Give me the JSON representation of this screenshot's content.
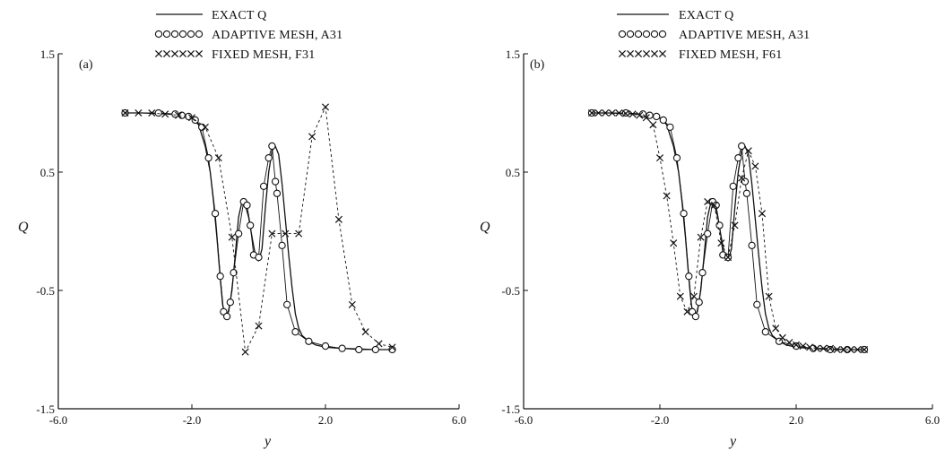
{
  "chart_data": [
    {
      "type": "line",
      "panel_label": "(a)",
      "xlabel": "y",
      "ylabel": "Q",
      "xlim": [
        -6.0,
        6.0
      ],
      "ylim": [
        -1.5,
        1.5
      ],
      "xticks": [
        "-6.0",
        "-2.0",
        "2.0",
        "6.0"
      ],
      "yticks": [
        "-1.5",
        "-0.5",
        "0.5",
        "1.5"
      ],
      "legend": [
        "EXACT Q",
        "ADAPTIVE MESH, A31",
        "FIXED MESH, F31"
      ],
      "series": [
        {
          "name": "EXACT Q",
          "style": "solid",
          "x": [
            -4.0,
            -3.5,
            -3.0,
            -2.5,
            -2.2,
            -2.0,
            -1.8,
            -1.6,
            -1.45,
            -1.35,
            -1.25,
            -1.15,
            -1.08,
            -1.0,
            -0.9,
            -0.8,
            -0.7,
            -0.6,
            -0.5,
            -0.4,
            -0.3,
            -0.2,
            -0.1,
            0.0,
            0.1,
            0.2,
            0.3,
            0.4,
            0.5,
            0.6,
            0.7,
            0.8,
            0.9,
            1.0,
            1.1,
            1.2,
            1.3,
            1.5,
            1.7,
            2.0,
            2.5,
            3.0,
            3.5,
            4.0
          ],
          "y": [
            1.0,
            1.0,
            0.995,
            0.99,
            0.98,
            0.96,
            0.9,
            0.72,
            0.5,
            0.25,
            -0.05,
            -0.4,
            -0.62,
            -0.72,
            -0.68,
            -0.5,
            -0.2,
            0.12,
            0.25,
            0.22,
            0.12,
            -0.05,
            -0.2,
            -0.25,
            -0.15,
            0.2,
            0.5,
            0.68,
            0.72,
            0.65,
            0.4,
            0.1,
            -0.2,
            -0.48,
            -0.7,
            -0.82,
            -0.88,
            -0.93,
            -0.96,
            -0.98,
            -0.99,
            -0.995,
            -1.0,
            -1.0
          ]
        },
        {
          "name": "ADAPTIVE MESH, A31",
          "style": "circles",
          "x": [
            -4.0,
            -3.0,
            -2.5,
            -2.3,
            -2.1,
            -1.9,
            -1.7,
            -1.5,
            -1.3,
            -1.15,
            -1.05,
            -0.95,
            -0.85,
            -0.75,
            -0.6,
            -0.45,
            -0.35,
            -0.25,
            -0.15,
            0.0,
            0.15,
            0.3,
            0.4,
            0.5,
            0.55,
            0.7,
            0.85,
            1.1,
            1.5,
            2.0,
            2.5,
            3.0,
            3.5,
            4.0
          ],
          "y": [
            1.0,
            1.0,
            0.99,
            0.98,
            0.97,
            0.94,
            0.88,
            0.62,
            0.15,
            -0.38,
            -0.68,
            -0.72,
            -0.6,
            -0.35,
            -0.02,
            0.25,
            0.22,
            0.05,
            -0.2,
            -0.22,
            0.38,
            0.62,
            0.72,
            0.42,
            0.32,
            -0.12,
            -0.62,
            -0.85,
            -0.93,
            -0.97,
            -0.99,
            -1.0,
            -1.0,
            -1.0
          ]
        },
        {
          "name": "FIXED MESH, F31",
          "style": "crosses",
          "x": [
            -4.0,
            -3.6,
            -3.2,
            -2.8,
            -2.4,
            -2.0,
            -1.6,
            -1.2,
            -0.8,
            -0.4,
            0.0,
            0.4,
            0.8,
            1.2,
            1.6,
            2.0,
            2.4,
            2.8,
            3.2,
            3.6,
            4.0
          ],
          "y": [
            1.0,
            1.0,
            1.0,
            0.99,
            0.98,
            0.96,
            0.88,
            0.62,
            -0.05,
            -1.02,
            -0.8,
            -0.02,
            -0.02,
            -0.02,
            0.8,
            1.05,
            0.1,
            -0.62,
            -0.85,
            -0.95,
            -0.98
          ]
        }
      ]
    },
    {
      "type": "line",
      "panel_label": "(b)",
      "xlabel": "y",
      "ylabel": "Q",
      "xlim": [
        -6.0,
        6.0
      ],
      "ylim": [
        -1.5,
        1.5
      ],
      "xticks": [
        "-6.0",
        "-2.0",
        "2.0",
        "6.0"
      ],
      "yticks": [
        "-1.5",
        "-0.5",
        "0.5",
        "1.5"
      ],
      "legend": [
        "EXACT Q",
        "ADAPTIVE MESH, A31",
        "FIXED MESH, F61"
      ],
      "series": [
        {
          "name": "EXACT Q",
          "style": "solid",
          "x": [
            -4.0,
            -3.5,
            -3.0,
            -2.5,
            -2.2,
            -2.0,
            -1.8,
            -1.6,
            -1.45,
            -1.35,
            -1.25,
            -1.15,
            -1.08,
            -1.0,
            -0.9,
            -0.8,
            -0.7,
            -0.6,
            -0.5,
            -0.4,
            -0.3,
            -0.2,
            -0.1,
            0.0,
            0.1,
            0.2,
            0.3,
            0.4,
            0.5,
            0.6,
            0.7,
            0.8,
            0.9,
            1.0,
            1.1,
            1.2,
            1.3,
            1.5,
            1.7,
            2.0,
            2.5,
            3.0,
            3.5,
            4.0
          ],
          "y": [
            1.0,
            1.0,
            0.995,
            0.99,
            0.98,
            0.96,
            0.9,
            0.72,
            0.5,
            0.25,
            -0.05,
            -0.4,
            -0.62,
            -0.72,
            -0.68,
            -0.5,
            -0.2,
            0.12,
            0.25,
            0.22,
            0.12,
            -0.05,
            -0.2,
            -0.25,
            -0.15,
            0.2,
            0.5,
            0.68,
            0.72,
            0.65,
            0.4,
            0.1,
            -0.2,
            -0.48,
            -0.7,
            -0.82,
            -0.88,
            -0.93,
            -0.96,
            -0.98,
            -0.99,
            -0.995,
            -1.0,
            -1.0
          ]
        },
        {
          "name": "ADAPTIVE MESH, A31",
          "style": "circles",
          "x": [
            -4.0,
            -3.0,
            -2.5,
            -2.3,
            -2.1,
            -1.9,
            -1.7,
            -1.5,
            -1.3,
            -1.15,
            -1.05,
            -0.95,
            -0.85,
            -0.75,
            -0.6,
            -0.45,
            -0.35,
            -0.25,
            -0.15,
            0.0,
            0.15,
            0.3,
            0.4,
            0.5,
            0.55,
            0.7,
            0.85,
            1.1,
            1.5,
            2.0,
            2.5,
            3.0,
            3.5,
            4.0
          ],
          "y": [
            1.0,
            1.0,
            0.99,
            0.98,
            0.97,
            0.94,
            0.88,
            0.62,
            0.15,
            -0.38,
            -0.68,
            -0.72,
            -0.6,
            -0.35,
            -0.02,
            0.25,
            0.22,
            0.05,
            -0.2,
            -0.22,
            0.38,
            0.62,
            0.72,
            0.42,
            0.32,
            -0.12,
            -0.62,
            -0.85,
            -0.93,
            -0.97,
            -0.99,
            -1.0,
            -1.0,
            -1.0
          ]
        },
        {
          "name": "FIXED MESH, F61",
          "style": "crosses",
          "x": [
            -4.0,
            -3.8,
            -3.6,
            -3.4,
            -3.2,
            -3.0,
            -2.8,
            -2.6,
            -2.4,
            -2.2,
            -2.0,
            -1.8,
            -1.6,
            -1.4,
            -1.2,
            -1.0,
            -0.8,
            -0.6,
            -0.4,
            -0.2,
            0.0,
            0.2,
            0.4,
            0.6,
            0.8,
            1.0,
            1.2,
            1.4,
            1.6,
            1.8,
            2.0,
            2.2,
            2.4,
            2.6,
            2.8,
            3.0,
            3.2,
            3.4,
            3.6,
            3.8,
            4.0
          ],
          "y": [
            1.0,
            1.0,
            1.0,
            1.0,
            1.0,
            0.995,
            0.99,
            0.98,
            0.96,
            0.9,
            0.62,
            0.3,
            -0.1,
            -0.55,
            -0.68,
            -0.55,
            -0.05,
            0.25,
            0.22,
            -0.1,
            -0.22,
            0.05,
            0.45,
            0.68,
            0.55,
            0.15,
            -0.55,
            -0.82,
            -0.9,
            -0.94,
            -0.96,
            -0.97,
            -0.98,
            -0.99,
            -0.99,
            -0.99,
            -1.0,
            -1.0,
            -1.0,
            -1.0,
            -1.0
          ]
        }
      ]
    }
  ]
}
